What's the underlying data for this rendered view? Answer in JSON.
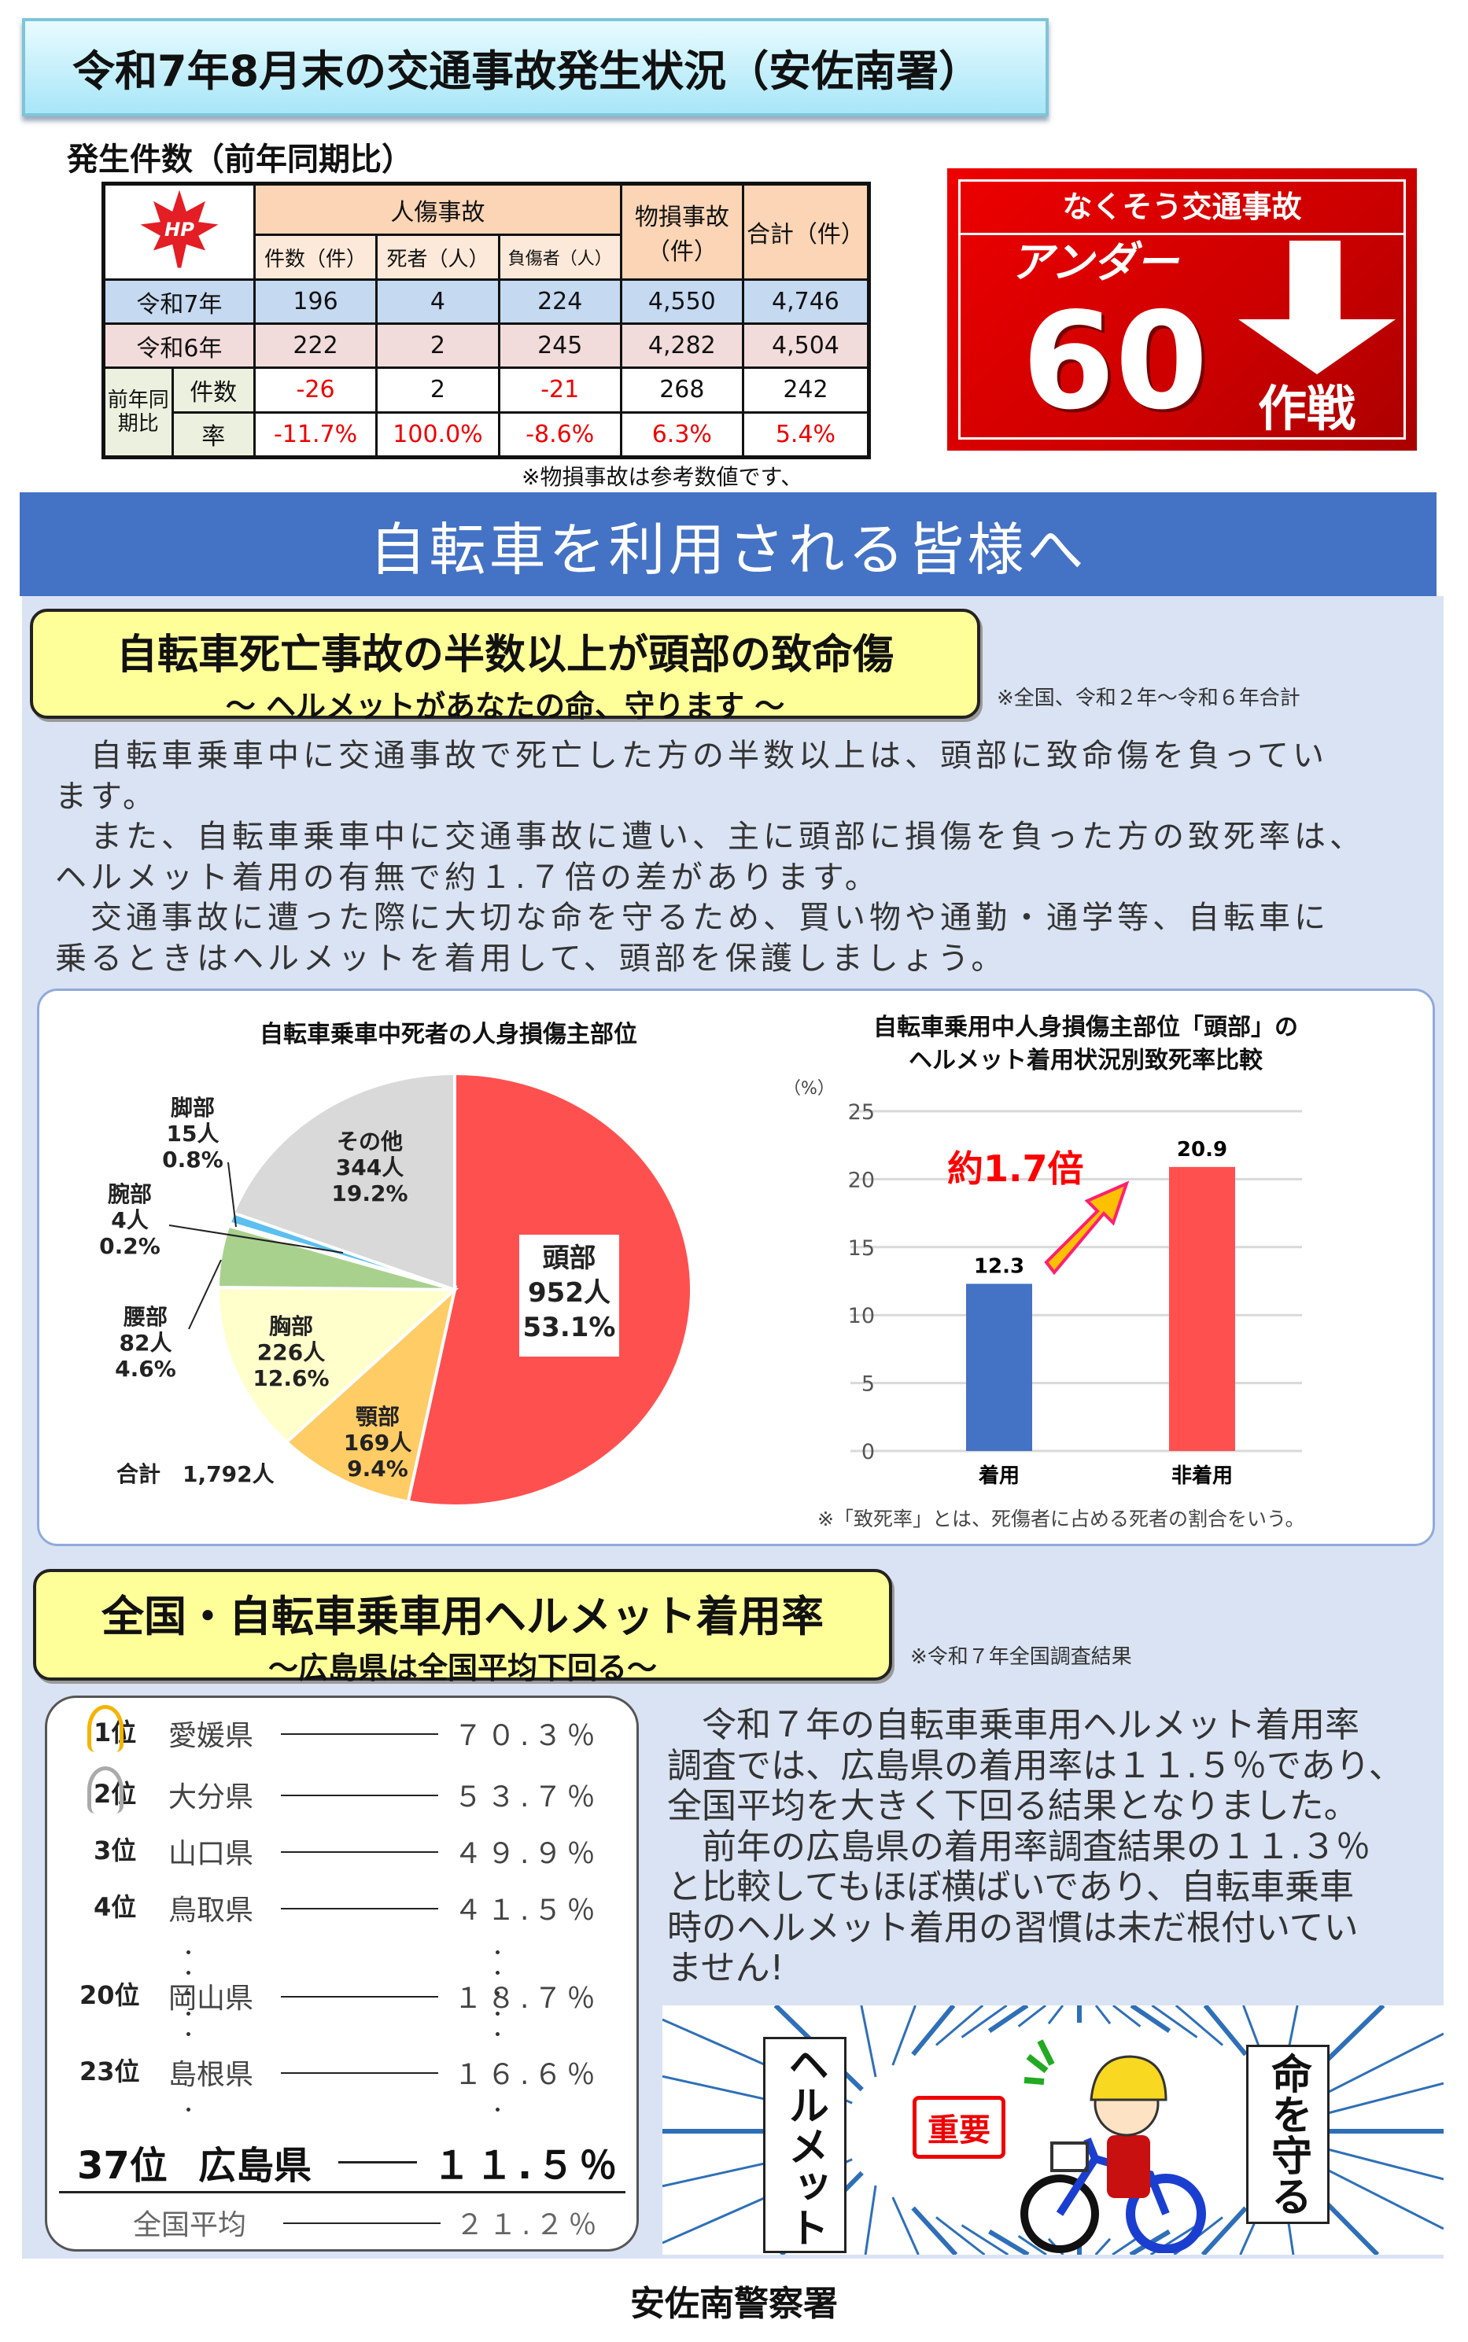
{
  "title": "令和7年8月末の交通事故発生状況（安佐南署）",
  "subtitle": "発生件数（前年同期比）",
  "table": {
    "logo_text": "HP",
    "group_header": "人傷事故",
    "sub_headers": [
      "件数（件）",
      "死者（人）",
      "負傷者（人）"
    ],
    "property_header": "物損事故（件）",
    "total_header": "合計（件）",
    "rows": [
      {
        "label": "令和7年",
        "values": [
          "196",
          "4",
          "224",
          "4,550",
          "4,746"
        ]
      },
      {
        "label": "令和6年",
        "values": [
          "222",
          "2",
          "245",
          "4,282",
          "4,504"
        ]
      }
    ],
    "compare_label": "前年同期比",
    "diff_label": "件数",
    "diff_values": [
      "-26",
      "2",
      "-21",
      "268",
      "242"
    ],
    "rate_label": "率",
    "rate_values": [
      "-11.7%",
      "100.0%",
      "-8.6%",
      "6.3%",
      "5.4%"
    ]
  },
  "note_property": "※物損事故は参考数値です、",
  "badge": {
    "top": "なくそう交通事故",
    "under": "アンダー",
    "number": "60",
    "strategy": "作戦"
  },
  "banner": "自転車を利用される皆様へ",
  "section1": {
    "heading": "自転車死亡事故の半数以上が頭部の致命傷",
    "subheading": "～ ヘルメットがあなたの命、守ります ～",
    "note": "※全国、令和２年～令和６年合計",
    "paragraph": [
      "　自転車乗車中に交通事故で死亡した方の半数以上は、頭部に致命傷を負ってい",
      "ます。",
      "　また、自転車乗車中に交通事故に遭い、主に頭部に損傷を負った方の致死率は、",
      "ヘルメット着用の有無で約１.７倍の差があります。",
      "　交通事故に遭った際に大切な命を守るため、買い物や通勤・通学等、自転車に",
      "乗るときはヘルメットを着用して、頭部を保護しましょう。"
    ]
  },
  "chart_data": [
    {
      "type": "pie",
      "title": "自転車乗車中死者の人身損傷主部位",
      "total_label": "合計　1,792人",
      "slices": [
        {
          "name": "頭部",
          "count": "952人",
          "pct": "53.1%",
          "value": 53.1,
          "color": "#ff5050"
        },
        {
          "name": "顎部",
          "count": "169人",
          "pct": "9.4%",
          "value": 9.4,
          "color": "#ffcc66"
        },
        {
          "name": "胸部",
          "count": "226人",
          "pct": "12.6%",
          "value": 12.6,
          "color": "#ffffcc"
        },
        {
          "name": "腰部",
          "count": "82人",
          "pct": "4.6%",
          "value": 4.6,
          "color": "#a9d18e"
        },
        {
          "name": "腕部",
          "count": "4人",
          "pct": "0.2%",
          "value": 0.2,
          "color": "#2e75b6"
        },
        {
          "name": "脚部",
          "count": "15人",
          "pct": "0.8%",
          "value": 0.8,
          "color": "#5bc0f0"
        },
        {
          "name": "その他",
          "count": "344人",
          "pct": "19.2%",
          "value": 19.2,
          "color": "#d9d9d9"
        }
      ]
    },
    {
      "type": "bar",
      "title": [
        "自転車乗用中人身損傷主部位「頭部」の",
        "ヘルメット着用状況別致死率比較"
      ],
      "ylabel": "（%）",
      "ylim": [
        0,
        25
      ],
      "yticks": [
        "0",
        "5",
        "10",
        "15",
        "20",
        "25"
      ],
      "categories": [
        "着用",
        "非着用"
      ],
      "values": [
        12.3,
        20.9
      ],
      "colors": [
        "#4472c4",
        "#ff5050"
      ],
      "labels": [
        "12.3",
        "20.9"
      ],
      "annotation": "約1.7倍",
      "footnote": "※「致死率」とは、死傷者に占める死者の割合をいう。"
    }
  ],
  "section2": {
    "heading": "全国・自転車乗車用ヘルメット着用率",
    "subheading": "～広島県は全国平均下回る～",
    "note": "※令和７年全国調査結果",
    "ranking": [
      {
        "rank": "1位",
        "pref": "愛媛県",
        "value": "７０.３％"
      },
      {
        "rank": "2位",
        "pref": "大分県",
        "value": "５３.７％"
      },
      {
        "rank": "3位",
        "pref": "山口県",
        "value": "４９.９％"
      },
      {
        "rank": "4位",
        "pref": "鳥取県",
        "value": "４１.５％"
      },
      {
        "rank": "20位",
        "pref": "岡山県",
        "value": "１８.７％"
      },
      {
        "rank": "23位",
        "pref": "島根県",
        "value": "１６.６％"
      }
    ],
    "hiroshima": {
      "rank": "37位",
      "pref": "広島県",
      "value": "１１.５％"
    },
    "average": {
      "label": "全国平均",
      "value": "２１.２％"
    },
    "paragraph": [
      "　令和７年の自転車乗車用ヘルメット着用率",
      "調査では、広島県の着用率は１１.５％であり、",
      "全国平均を大きく下回る結果となりました。",
      "　前年の広島県の着用率調査結果の１１.３％",
      "と比較してもほぼ横ばいであり、自転車乗車",
      "時のヘルメット着用の習慣は未だ根付いてい",
      "ません!"
    ]
  },
  "illustration": {
    "left_text": "ヘルメット",
    "stamp": "重要",
    "right_text": "命を守る"
  },
  "footer": "安佐南警察署"
}
